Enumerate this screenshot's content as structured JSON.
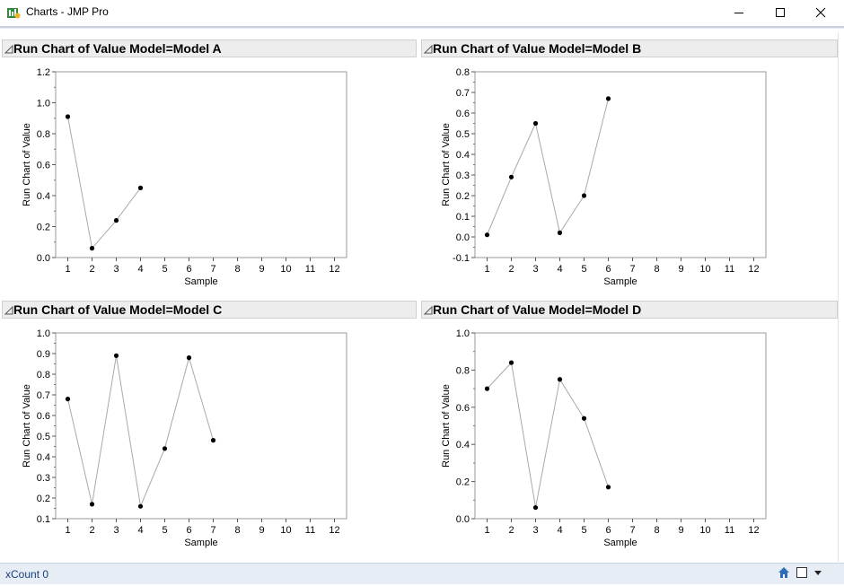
{
  "window": {
    "title": "Charts - JMP Pro"
  },
  "status": {
    "text": "xCount  0"
  },
  "colors": {
    "line": "#a9a9a9",
    "point": "#000000",
    "frame": "#9a9a9a",
    "header_bg": "#ededed"
  },
  "chart_data": [
    {
      "type": "line",
      "title": "Run Chart of Value Model=Model A",
      "xlabel": "Sample",
      "ylabel": "Run Chart of Value",
      "xlim": [
        0.5,
        12.5
      ],
      "ylim": [
        0.0,
        1.2
      ],
      "xticks": [
        1,
        2,
        3,
        4,
        5,
        6,
        7,
        8,
        9,
        10,
        11,
        12
      ],
      "yticks": [
        "0.0",
        "0.2",
        "0.4",
        "0.6",
        "0.8",
        "1.0",
        "1.2"
      ],
      "grid": false,
      "series": [
        {
          "x": [
            1,
            2,
            3,
            4
          ],
          "y": [
            0.91,
            0.06,
            0.24,
            0.45
          ]
        }
      ]
    },
    {
      "type": "line",
      "title": "Run Chart of Value Model=Model B",
      "xlabel": "Sample",
      "ylabel": "Run Chart of Value",
      "xlim": [
        0.5,
        12.5
      ],
      "ylim": [
        -0.1,
        0.8
      ],
      "xticks": [
        1,
        2,
        3,
        4,
        5,
        6,
        7,
        8,
        9,
        10,
        11,
        12
      ],
      "yticks": [
        "-0.1",
        "0.0",
        "0.1",
        "0.2",
        "0.3",
        "0.4",
        "0.5",
        "0.6",
        "0.7",
        "0.8"
      ],
      "grid": false,
      "series": [
        {
          "x": [
            1,
            2,
            3,
            4,
            5,
            6
          ],
          "y": [
            0.01,
            0.29,
            0.55,
            0.02,
            0.2,
            0.67
          ]
        }
      ]
    },
    {
      "type": "line",
      "title": "Run Chart of Value Model=Model C",
      "xlabel": "Sample",
      "ylabel": "Run Chart of Value",
      "xlim": [
        0.5,
        12.5
      ],
      "ylim": [
        0.1,
        1.0
      ],
      "xticks": [
        1,
        2,
        3,
        4,
        5,
        6,
        7,
        8,
        9,
        10,
        11,
        12
      ],
      "yticks": [
        "0.1",
        "0.2",
        "0.3",
        "0.4",
        "0.5",
        "0.6",
        "0.7",
        "0.8",
        "0.9",
        "1.0"
      ],
      "grid": false,
      "series": [
        {
          "x": [
            1,
            2,
            3,
            4,
            5,
            6,
            7
          ],
          "y": [
            0.68,
            0.17,
            0.89,
            0.16,
            0.44,
            0.88,
            0.48
          ]
        }
      ]
    },
    {
      "type": "line",
      "title": "Run Chart of Value Model=Model D",
      "xlabel": "Sample",
      "ylabel": "Run Chart of Value",
      "xlim": [
        0.5,
        12.5
      ],
      "ylim": [
        0.0,
        1.0
      ],
      "xticks": [
        1,
        2,
        3,
        4,
        5,
        6,
        7,
        8,
        9,
        10,
        11,
        12
      ],
      "yticks": [
        "0.0",
        "0.2",
        "0.4",
        "0.6",
        "0.8",
        "1.0"
      ],
      "grid": false,
      "series": [
        {
          "x": [
            1,
            2,
            3,
            4,
            5,
            6
          ],
          "y": [
            0.7,
            0.84,
            0.06,
            0.75,
            0.54,
            0.17
          ]
        }
      ]
    }
  ]
}
